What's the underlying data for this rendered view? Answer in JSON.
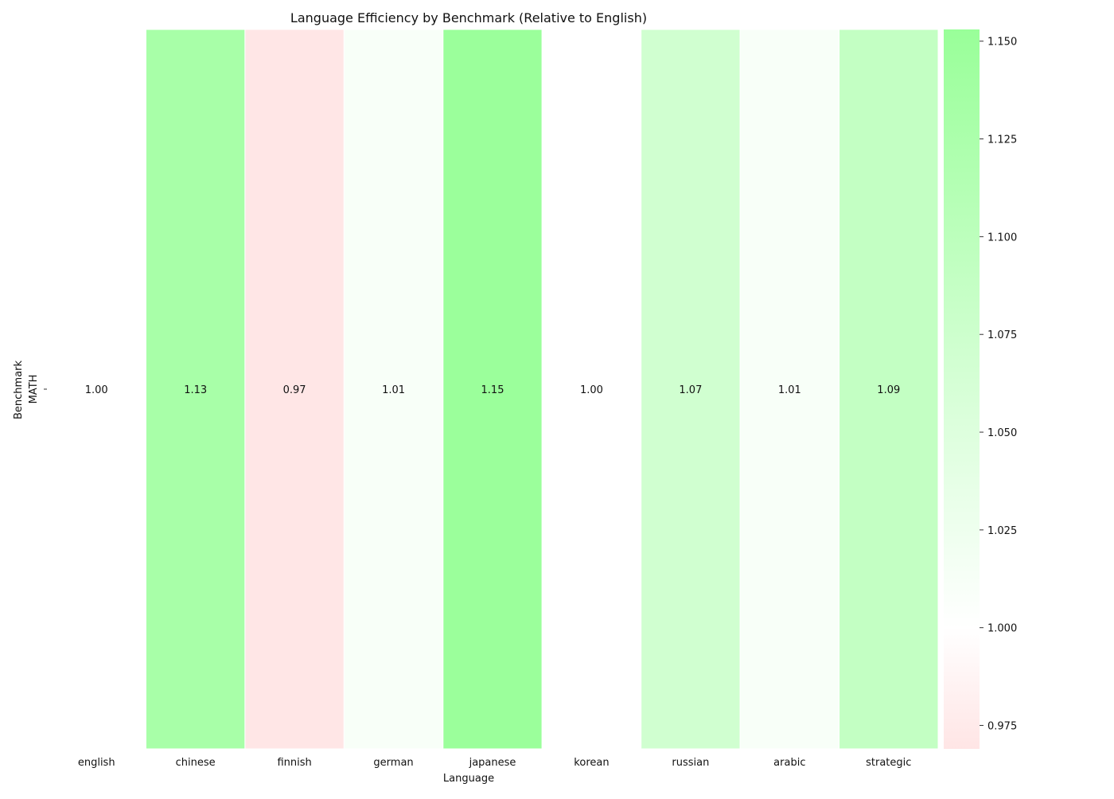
{
  "chart_data": {
    "type": "heatmap",
    "title": "Language Efficiency by Benchmark (Relative to English)",
    "xlabel": "Language",
    "ylabel": "Benchmark",
    "x_categories": [
      "english",
      "chinese",
      "finnish",
      "german",
      "japanese",
      "korean",
      "russian",
      "arabic",
      "strategic"
    ],
    "y_categories": [
      "MATH"
    ],
    "values": [
      [
        1.0,
        1.13,
        0.97,
        1.01,
        1.15,
        1.0,
        1.07,
        1.01,
        1.09
      ]
    ],
    "cell_labels": [
      [
        "1.00",
        "1.13",
        "0.97",
        "1.01",
        "1.15",
        "1.00",
        "1.07",
        "1.01",
        "1.09"
      ]
    ],
    "colorbar": {
      "range": [
        0.969,
        1.153
      ],
      "ticks": [
        0.975,
        1.0,
        1.025,
        1.05,
        1.075,
        1.1,
        1.125,
        1.15
      ],
      "tick_labels": [
        "0.975",
        "1.000",
        "1.025",
        "1.050",
        "1.075",
        "1.100",
        "1.125",
        "1.150"
      ],
      "colors": {
        "low": "#ffe5e5",
        "mid": "#ffffff",
        "high": "#99ff99"
      },
      "mid_value": 1.0
    },
    "grid": false,
    "legend": "colorbar-right"
  }
}
